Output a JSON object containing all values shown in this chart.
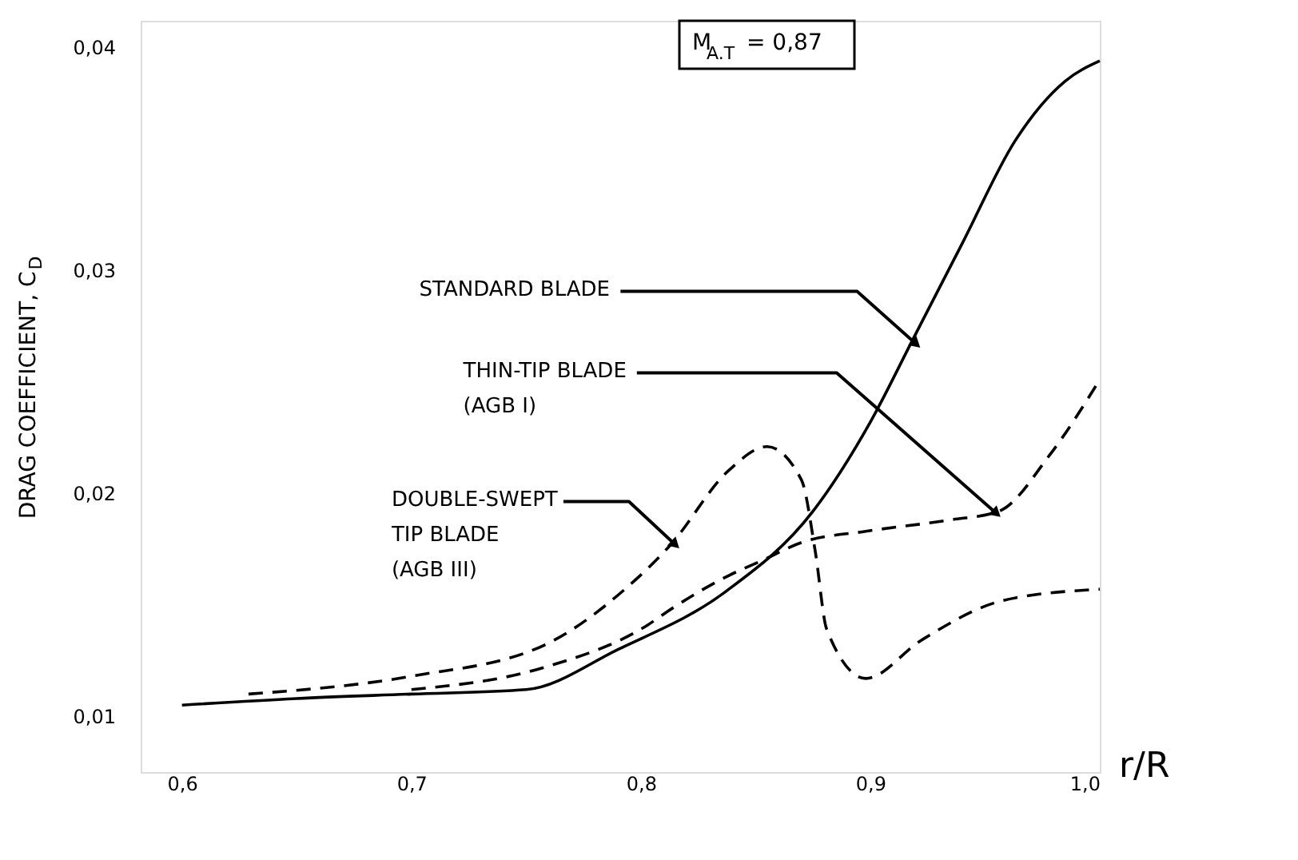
{
  "chart_data": {
    "type": "line",
    "xlabel": "r/R",
    "ylabel": "DRAG COEFFICIENT, C$_{D}$",
    "xlim": [
      0.582,
      1.0
    ],
    "ylim": [
      0.0075,
      0.0412
    ],
    "xticks": [
      {
        "value": 0.6,
        "label": "0,6"
      },
      {
        "value": 0.7,
        "label": "0,7"
      },
      {
        "value": 0.8,
        "label": "0,8"
      },
      {
        "value": 0.9,
        "label": "0,9"
      },
      {
        "value": 1.0,
        "label": "1,0"
      }
    ],
    "yticks": [
      {
        "value": 0.01,
        "label": "0,01"
      },
      {
        "value": 0.02,
        "label": "0,02"
      },
      {
        "value": 0.03,
        "label": "0,03"
      },
      {
        "value": 0.04,
        "label": "0,04"
      }
    ],
    "grid": false,
    "marker": "none",
    "series": [
      {
        "color": "#000000",
        "line_style": "solid",
        "x": [
          0.6,
          0.65,
          0.7,
          0.75,
          0.79,
          0.837,
          0.875,
          0.9,
          0.919,
          0.94,
          0.963,
          0.985,
          1.0
        ],
        "values": [
          0.0105,
          0.0108,
          0.011,
          0.0112,
          0.013,
          0.0156,
          0.0192,
          0.0232,
          0.027,
          0.0312,
          0.0358,
          0.0385,
          0.0394
        ]
      },
      {
        "color": "#000000",
        "line_style": "dashed",
        "x": [
          0.7,
          0.758,
          0.803,
          0.813,
          0.838,
          0.853,
          0.87,
          0.898,
          0.934,
          0.956,
          0.978,
          1.0
        ],
        "values": [
          0.0112,
          0.0122,
          0.0141,
          0.0148,
          0.0163,
          0.017,
          0.0178,
          0.0183,
          0.0188,
          0.0192,
          0.0217,
          0.0251
        ]
      },
      {
        "color": "#000000",
        "line_style": "dashed",
        "x": [
          0.629,
          0.7,
          0.758,
          0.793,
          0.813,
          0.838,
          0.855,
          0.87,
          0.876,
          0.881,
          0.898,
          0.922,
          0.958,
          1.0
        ],
        "values": [
          0.011,
          0.0118,
          0.0132,
          0.0157,
          0.0177,
          0.021,
          0.0221,
          0.0206,
          0.0174,
          0.0139,
          0.0117,
          0.0134,
          0.0152,
          0.0157
        ]
      }
    ],
    "annotations": [
      {
        "text": "STANDARD BLADE",
        "x": 0.92,
        "y": 0.0267
      },
      {
        "text": "THIN-TIP BLADE\n(AGB I)",
        "x": 0.955,
        "y": 0.0191
      },
      {
        "text": "DOUBLE-SWEPT\nTIP BLADE\n(AGB III)",
        "x": 0.815,
        "y": 0.0177
      },
      "M$_{A.T}$ = 0,87"
    ]
  }
}
